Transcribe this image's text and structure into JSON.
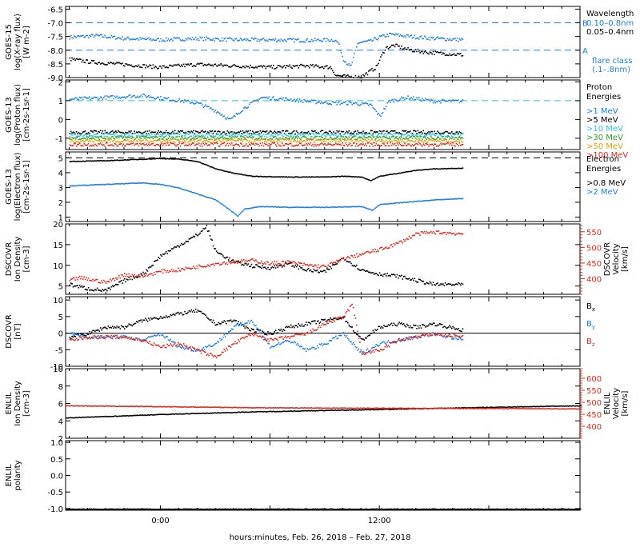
{
  "xlabel": "hours:minutes, Feb. 26, 2018 – Feb. 27, 2018",
  "xticks": [
    {
      "hour": 0,
      "label": "0:00"
    },
    {
      "hour": 12,
      "label": "12:00"
    }
  ],
  "xrange_hours": [
    -5.2,
    23.0
  ],
  "colors": {
    "black": "#000000",
    "blue": "#1f7fe0",
    "cyan": "#26c6e8",
    "green": "#2aa02a",
    "orange": "#e0a000",
    "red": "#e0281e",
    "dash_blue": "#1f7fe0",
    "dash_cyan": "#26c6e8"
  },
  "chart_data": [
    {
      "id": "goes15-xray",
      "type": "scatter",
      "ylabel_lines": [
        "GOES-15",
        "log(X-ray flux)",
        "[W m-2]"
      ],
      "ylim": [
        -9.0,
        -6.4
      ],
      "yticks": [
        "-6.5",
        "-7.0",
        "-7.5",
        "-8.0",
        "-8.5",
        "-9.0"
      ],
      "ytick_values": [
        -6.5,
        -7.0,
        -7.5,
        -8.0,
        -8.5,
        -9.0
      ],
      "reference_lines": [
        {
          "y": -7.0,
          "label": "B"
        },
        {
          "y": -8.0,
          "label": "A"
        }
      ],
      "legend_title": [
        "Wavelength"
      ],
      "legend": [
        {
          "name": "0.10–0.8nm",
          "color": "blue"
        },
        {
          "name": "0.05–0.4nm",
          "color": "black"
        }
      ],
      "note": [
        "flare class",
        "(.1–.8nm)"
      ],
      "series": [
        {
          "name": "0.10–0.8nm",
          "color": "blue",
          "x": [
            -5.0,
            -3.5,
            -2.0,
            0.0,
            2.0,
            4.0,
            6.0,
            8.0,
            9.5,
            9.7,
            10.0,
            10.4,
            10.8,
            11.5,
            12.0,
            12.6,
            14.0,
            15.0,
            16.6
          ],
          "y": [
            -7.5,
            -7.45,
            -7.55,
            -7.6,
            -7.55,
            -7.6,
            -7.6,
            -7.62,
            -7.6,
            -7.7,
            -8.3,
            -8.6,
            -7.7,
            -7.65,
            -7.5,
            -7.4,
            -7.5,
            -7.55,
            -7.6
          ]
        },
        {
          "name": "0.05–0.4nm",
          "color": "black",
          "x": [
            -5.0,
            -4.0,
            -2.0,
            0.0,
            2.0,
            4.0,
            6.0,
            8.0,
            9.3,
            9.6,
            10.2,
            11.0,
            11.8,
            12.3,
            12.8,
            13.5,
            14.5,
            15.5,
            16.6
          ],
          "y": [
            -8.3,
            -8.4,
            -8.5,
            -8.6,
            -8.5,
            -8.55,
            -8.6,
            -8.55,
            -8.6,
            -8.9,
            -8.95,
            -8.95,
            -8.6,
            -7.9,
            -7.8,
            -7.95,
            -8.05,
            -8.1,
            -8.15
          ]
        }
      ]
    },
    {
      "id": "goes13-proton",
      "type": "scatter",
      "ylabel_lines": [
        "GOES-13",
        "log(Proton flux)",
        "[cm-2s-1sr-1]"
      ],
      "ylim": [
        -1.6,
        2.1
      ],
      "yticks": [
        "2",
        "1",
        "0",
        "-1"
      ],
      "ytick_values": [
        2,
        1,
        0,
        -1
      ],
      "reference_lines": [
        {
          "y": 1.0,
          "label": ""
        }
      ],
      "legend_title": [
        "Proton",
        "Energies"
      ],
      "legend": [
        {
          "name": ">1 MeV",
          "color": "blue"
        },
        {
          "name": ">5 MeV",
          "color": "black"
        },
        {
          "name": ">10 MeV",
          "color": "cyan"
        },
        {
          "name": ">30 MeV",
          "color": "green"
        },
        {
          "name": ">50 MeV",
          "color": "orange"
        },
        {
          "name": ">100 MeV",
          "color": "red"
        }
      ],
      "series": [
        {
          "name": ">1 MeV",
          "color": "blue",
          "x": [
            -5.0,
            -3.0,
            -1.0,
            0.5,
            2.0,
            3.0,
            3.8,
            4.5,
            5.5,
            7.0,
            8.0,
            9.5,
            10.5,
            11.5,
            12.0,
            12.5,
            13.5,
            15.0,
            16.6
          ],
          "y": [
            1.1,
            1.2,
            1.3,
            1.1,
            0.9,
            0.5,
            0.0,
            0.6,
            1.2,
            1.1,
            1.0,
            0.9,
            0.9,
            0.8,
            0.2,
            1.0,
            1.2,
            1.0,
            1.0
          ]
        },
        {
          "name": ">5 MeV",
          "color": "black",
          "x": [
            -5,
            0,
            5,
            10,
            16.6
          ],
          "y": [
            -0.65,
            -0.65,
            -0.65,
            -0.65,
            -0.65
          ]
        },
        {
          "name": ">10 MeV",
          "color": "cyan",
          "x": [
            -5,
            0,
            5,
            10,
            16.6
          ],
          "y": [
            -0.8,
            -0.8,
            -0.8,
            -0.8,
            -0.8
          ]
        },
        {
          "name": ">30 MeV",
          "color": "green",
          "x": [
            -5,
            0,
            5,
            10,
            16.6
          ],
          "y": [
            -0.95,
            -0.95,
            -0.95,
            -0.95,
            -0.95
          ]
        },
        {
          "name": ">50 MeV",
          "color": "orange",
          "x": [
            -5,
            0,
            5,
            10,
            16.6
          ],
          "y": [
            -1.1,
            -1.1,
            -1.1,
            -1.1,
            -1.1
          ]
        },
        {
          "name": ">100 MeV",
          "color": "red",
          "x": [
            -5,
            0,
            5,
            10,
            16.6
          ],
          "y": [
            -1.3,
            -1.3,
            -1.3,
            -1.3,
            -1.3
          ]
        }
      ]
    },
    {
      "id": "goes13-electron",
      "type": "line",
      "ylabel_lines": [
        "GOES-13",
        "log(Electron flux)",
        "[cm-2s-1sr-1]"
      ],
      "ylim": [
        0.7,
        5.4
      ],
      "yticks": [
        "5",
        "4",
        "3",
        "2",
        "1"
      ],
      "ytick_values": [
        5,
        4,
        3,
        2,
        1
      ],
      "reference_lines": [
        {
          "y": 5.0,
          "label": ""
        }
      ],
      "legend_title": [
        "Electron",
        "Energies"
      ],
      "legend": [
        {
          "name": ">0.8 MeV",
          "color": "black"
        },
        {
          "name": ">2 MeV",
          "color": "blue"
        }
      ],
      "series": [
        {
          "name": ">0.8 MeV",
          "color": "black",
          "x": [
            -5.0,
            -3.0,
            -1.0,
            0.0,
            1.0,
            2.0,
            3.0,
            4.0,
            5.0,
            7.0,
            9.0,
            10.0,
            11.0,
            11.5,
            12.0,
            13.0,
            14.0,
            15.0,
            16.6
          ],
          "y": [
            4.8,
            4.85,
            4.95,
            5.0,
            4.95,
            4.8,
            4.3,
            4.0,
            3.8,
            3.75,
            3.75,
            3.8,
            3.75,
            3.5,
            3.8,
            4.0,
            4.2,
            4.3,
            4.35
          ]
        },
        {
          "name": ">2 MeV",
          "color": "blue",
          "x": [
            -5.0,
            -3.0,
            -1.0,
            0.0,
            1.0,
            2.0,
            3.0,
            3.8,
            4.2,
            4.6,
            5.5,
            7.0,
            9.0,
            11.0,
            11.6,
            12.0,
            13.0,
            15.0,
            16.6
          ],
          "y": [
            3.15,
            3.25,
            3.35,
            3.25,
            3.0,
            2.6,
            2.2,
            1.5,
            1.1,
            1.6,
            1.75,
            1.7,
            1.7,
            1.75,
            1.5,
            1.9,
            2.0,
            2.2,
            2.3
          ]
        }
      ]
    },
    {
      "id": "dscovr-density-velocity",
      "type": "scatter",
      "ylabel_lines": [
        "DSCOVR",
        "Ion Density",
        "[cm-3]"
      ],
      "ylim": [
        3,
        20
      ],
      "yticks": [
        "20",
        "15",
        "10",
        "5"
      ],
      "ytick_values": [
        20,
        15,
        10,
        5
      ],
      "y2label_lines": [
        "DSCOVR",
        "Velocity",
        "[km/s]"
      ],
      "y2lim": [
        350,
        575
      ],
      "y2ticks": [
        "550",
        "500",
        "450",
        "400"
      ],
      "y2tick_values": [
        550,
        500,
        450,
        400
      ],
      "series": [
        {
          "name": "density",
          "axis": "left",
          "color": "black",
          "x": [
            -5.0,
            -4.0,
            -3.0,
            -2.0,
            -1.0,
            0.0,
            1.0,
            2.0,
            2.5,
            3.0,
            4.0,
            5.0,
            6.0,
            7.0,
            8.0,
            9.0,
            10.0,
            10.5,
            11.0,
            12.0,
            13.0,
            14.0,
            15.0,
            16.6
          ],
          "y": [
            5.5,
            4.5,
            4.0,
            6.5,
            8.0,
            12.5,
            15.0,
            17.5,
            19.5,
            13.5,
            11.0,
            10.0,
            9.5,
            10.5,
            9.0,
            8.5,
            12.0,
            10.5,
            9.0,
            8.0,
            7.5,
            6.5,
            5.5,
            5.5
          ]
        },
        {
          "name": "velocity",
          "axis": "right",
          "color": "red",
          "x": [
            -5.0,
            -4.5,
            -4.0,
            -3.0,
            -2.0,
            -1.0,
            0.0,
            1.0,
            2.0,
            3.0,
            4.0,
            5.0,
            6.0,
            7.0,
            8.0,
            9.0,
            10.0,
            11.0,
            12.0,
            13.0,
            14.0,
            15.0,
            16.6
          ],
          "y": [
            395,
            405,
            400,
            390,
            415,
            410,
            425,
            430,
            440,
            450,
            455,
            460,
            450,
            455,
            445,
            440,
            465,
            480,
            495,
            515,
            545,
            550,
            545
          ]
        }
      ]
    },
    {
      "id": "dscovr-b-field",
      "type": "scatter",
      "ylabel_lines": [
        "DSCOVR",
        "[nT]"
      ],
      "ylim": [
        -10,
        11
      ],
      "yticks": [
        "10",
        "5",
        "0",
        "-5",
        "-10"
      ],
      "ytick_values": [
        10,
        5,
        0,
        -5,
        -10
      ],
      "reference_lines": [
        {
          "y": 0,
          "label": ""
        }
      ],
      "legend": [
        {
          "name": "Bx",
          "sym": "B",
          "sub": "x",
          "color": "black"
        },
        {
          "name": "By",
          "sym": "B",
          "sub": "y",
          "color": "blue"
        },
        {
          "name": "Bz",
          "sym": "B",
          "sub": "z",
          "color": "red"
        }
      ],
      "series": [
        {
          "name": "Bx",
          "color": "black",
          "x": [
            -5.0,
            -4.0,
            -3.0,
            -2.0,
            -1.0,
            0.0,
            1.0,
            2.0,
            3.0,
            4.0,
            5.0,
            6.0,
            7.0,
            8.0,
            9.0,
            10.0,
            11.0,
            12.0,
            13.0,
            14.0,
            15.0,
            16.6
          ],
          "y": [
            -1,
            0,
            2,
            2,
            4,
            5,
            6,
            7,
            3,
            4,
            1,
            0,
            2,
            3,
            4,
            5,
            -2,
            2,
            3,
            2,
            3,
            1
          ]
        },
        {
          "name": "By",
          "color": "blue",
          "x": [
            -5.0,
            -4.0,
            -3.0,
            -2.0,
            -1.0,
            0.0,
            1.0,
            2.0,
            3.0,
            4.0,
            5.0,
            6.0,
            7.0,
            8.0,
            9.0,
            10.0,
            11.0,
            12.0,
            13.0,
            14.0,
            15.0,
            16.6
          ],
          "y": [
            0,
            -1,
            -1,
            -1,
            -2,
            0,
            -4,
            -5,
            -3,
            2,
            4,
            -4,
            -2,
            -5,
            -3,
            0,
            -6,
            -3,
            -2,
            -1,
            0,
            -2
          ]
        },
        {
          "name": "Bz",
          "color": "red",
          "x": [
            -5.0,
            -4.0,
            -3.0,
            -2.0,
            -1.0,
            0.0,
            1.0,
            2.0,
            3.0,
            4.0,
            5.0,
            6.0,
            7.0,
            8.0,
            9.0,
            10.0,
            10.5,
            11.0,
            12.0,
            13.0,
            14.0,
            15.0,
            16.6
          ],
          "y": [
            -2,
            -1,
            -1,
            -1,
            -2,
            -4,
            -3,
            -5,
            -7,
            -3,
            0,
            -2,
            -1,
            0,
            3,
            5,
            9,
            -6,
            -5,
            -2,
            -1,
            0,
            -1
          ]
        }
      ]
    },
    {
      "id": "enlil-density-velocity",
      "type": "line",
      "ylabel_lines": [
        "ENLIL",
        "Ion Density",
        "[cm-3]"
      ],
      "ylim": [
        2,
        10
      ],
      "yticks": [
        "10",
        "8",
        "6",
        "4",
        "2"
      ],
      "ytick_values": [
        10,
        8,
        6,
        4,
        2
      ],
      "y2label_lines": [
        "ENLIL",
        "Velocity",
        "[km/s]"
      ],
      "y2lim": [
        350,
        640
      ],
      "y2ticks": [
        "600",
        "550",
        "500",
        "450",
        "400"
      ],
      "y2tick_values": [
        600,
        550,
        500,
        450,
        400
      ],
      "series": [
        {
          "name": "density",
          "axis": "left",
          "color": "black",
          "x": [
            -5.2,
            0,
            5,
            10,
            15,
            20,
            23
          ],
          "y": [
            4.4,
            4.8,
            5.1,
            5.3,
            5.5,
            5.7,
            5.8
          ]
        },
        {
          "name": "velocity",
          "axis": "right",
          "color": "red",
          "x": [
            -5.2,
            0,
            5,
            10,
            15,
            20,
            23
          ],
          "y": [
            488,
            484,
            480,
            478,
            477,
            476,
            475
          ]
        }
      ]
    },
    {
      "id": "enlil-bx-polarity",
      "type": "line",
      "ylabel_lines": [
        "ENLIL",
        "polarity"
      ],
      "ylabel_b": {
        "sym": "B",
        "sub": "x"
      },
      "ylim": [
        -1.05,
        1.05
      ],
      "yticks": [
        "1.0",
        "0.5",
        "0.0",
        "-0.5",
        "-1.0"
      ],
      "ytick_values": [
        1.0,
        0.5,
        0.0,
        -0.5,
        -1.0
      ],
      "series": [
        {
          "name": "polarity",
          "color": "black",
          "x": [
            -5.2,
            23
          ],
          "y": [
            -1,
            -1
          ]
        }
      ]
    }
  ]
}
